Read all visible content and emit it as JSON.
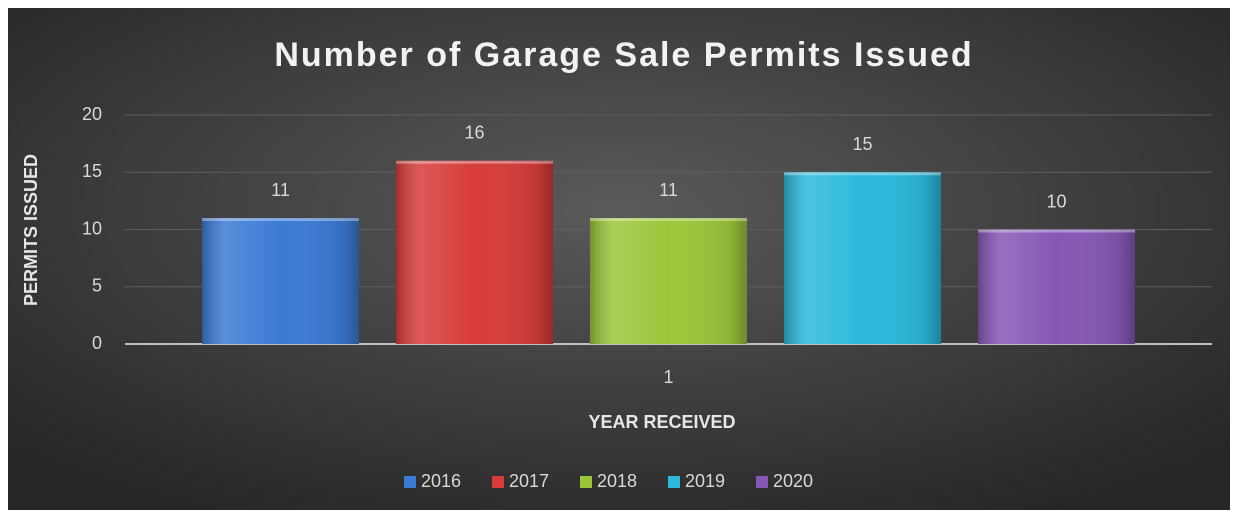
{
  "chart_data": {
    "type": "bar",
    "title": "Number of Garage Sale Permits Issued",
    "x_label": "YEAR RECEIVED",
    "y_label": "PERMITS ISSUED",
    "categories": [
      "1"
    ],
    "series": [
      {
        "name": "2016",
        "color": "#3b7ad4",
        "values": [
          11
        ]
      },
      {
        "name": "2017",
        "color": "#d63c3a",
        "values": [
          16
        ]
      },
      {
        "name": "2018",
        "color": "#9cc63a",
        "values": [
          11
        ]
      },
      {
        "name": "2019",
        "color": "#2cb9dc",
        "values": [
          15
        ]
      },
      {
        "name": "2020",
        "color": "#8658b5",
        "values": [
          10
        ]
      }
    ],
    "ylim": [
      0,
      20
    ],
    "yticks": [
      0,
      5,
      10,
      15,
      20
    ],
    "grid": true,
    "legend": "bottom"
  }
}
